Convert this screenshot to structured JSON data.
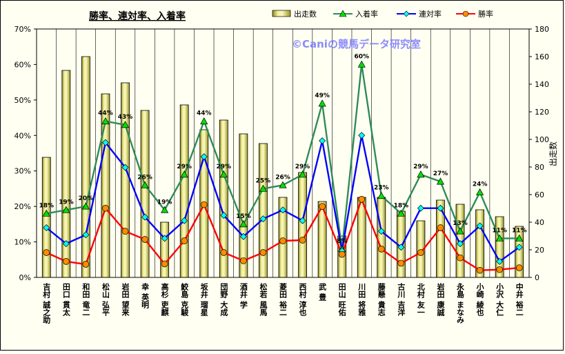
{
  "chart_data": {
    "type": "bar+line",
    "title": "勝率、連対率、入着率",
    "watermark": "©Caniの競馬データ研究室",
    "y2label": "出走数",
    "legend": {
      "position": "top-right",
      "entries": [
        "出走数",
        "入着率",
        "連対率",
        "勝率"
      ]
    },
    "categories": [
      "吉村 誠之助",
      "田口 貫太",
      "和田 竜二",
      "松山 弘平",
      "岩田 望来",
      "幸 英明",
      "高杉 吏麒",
      "鮫島 克駿",
      "坂井 瑠星",
      "団野 大成",
      "酒井 学",
      "松若 風馬",
      "菱田 裕二",
      "西村 淳也",
      "武 豊",
      "田山 旺佑",
      "川田 将雅",
      "藤懸 貴志",
      "古川 吉洋",
      "北村 友一",
      "岩田 康誠",
      "永島 まなみ",
      "小崎 綾也",
      "小沢 大仁",
      "中井 裕二"
    ],
    "ylim_left": [
      0,
      70
    ],
    "yticks_left": [
      "0%",
      "10%",
      "20%",
      "30%",
      "40%",
      "50%",
      "60%",
      "70%"
    ],
    "ylim_right": [
      0,
      180
    ],
    "yticks_right": [
      "0",
      "20",
      "40",
      "60",
      "80",
      "100",
      "120",
      "140",
      "160",
      "180"
    ],
    "grid": true,
    "series": [
      {
        "name": "出走数",
        "kind": "bar",
        "axis": "right",
        "color": "#c9c64c",
        "values": [
          87,
          150,
          160,
          133,
          141,
          121,
          40,
          125,
          107,
          114,
          104,
          97,
          58,
          76,
          55,
          30,
          58,
          58,
          48,
          41,
          56,
          53,
          49,
          44,
          37
        ]
      },
      {
        "name": "入着率",
        "kind": "line",
        "axis": "left",
        "color": "#2e8b57",
        "marker_color": "#00e000",
        "values": [
          18,
          19,
          20,
          44,
          43,
          26,
          19,
          29,
          44,
          29,
          15,
          25,
          26,
          29,
          49,
          8,
          60,
          23,
          18,
          29,
          27,
          13,
          24,
          11,
          11
        ],
        "labels": [
          "18%",
          "19%",
          "20%",
          "44%",
          "43%",
          "26%",
          "19%",
          "29%",
          "44%",
          "29%",
          "15%",
          "25%",
          "26%",
          "29%",
          "49%",
          "8%",
          "60%",
          "23%",
          "18%",
          "29%",
          "27%",
          "13%",
          "24%",
          "11%",
          "11%"
        ]
      },
      {
        "name": "連対率",
        "kind": "line",
        "axis": "left",
        "color": "#0000ff",
        "marker_color": "#00ffff",
        "values": [
          14,
          9.5,
          12,
          38,
          31,
          17,
          11,
          16,
          34,
          17.5,
          11.5,
          16.5,
          19,
          16,
          38.5,
          7.5,
          40,
          13,
          8.5,
          19.5,
          19.5,
          9.5,
          14.5,
          4.5,
          8.5
        ]
      },
      {
        "name": "勝率",
        "kind": "line",
        "axis": "left",
        "color": "#ff0000",
        "marker_color": "#ff8c00",
        "values": [
          7,
          4.5,
          3.7,
          19.5,
          13,
          10.7,
          3.8,
          10.3,
          20.5,
          7,
          4.7,
          7,
          10.3,
          10.5,
          20,
          6.5,
          22,
          8,
          4,
          7,
          14,
          5.5,
          2,
          2.2,
          2.7
        ]
      }
    ]
  }
}
